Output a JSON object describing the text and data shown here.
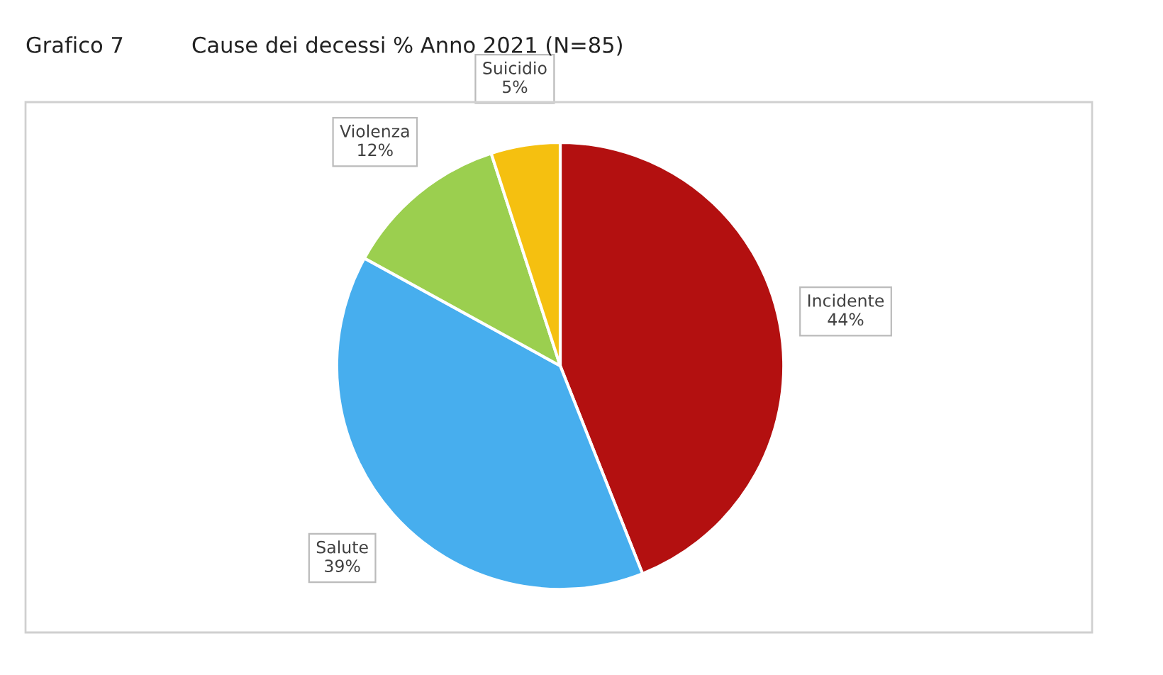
{
  "chart_data": {
    "type": "pie",
    "title": "Grafico 7",
    "subtitle": "Cause dei decessi % Anno 2021 (N=85)",
    "categories": [
      "Incidente",
      "Salute",
      "Violenza",
      "Suicidio"
    ],
    "values": [
      44,
      39,
      12,
      5
    ],
    "value_labels": [
      "44%",
      "39%",
      "12%",
      "5%"
    ],
    "colors": [
      "#b31010",
      "#47aeee",
      "#9bcf4f",
      "#f5c010"
    ],
    "legend": false
  }
}
